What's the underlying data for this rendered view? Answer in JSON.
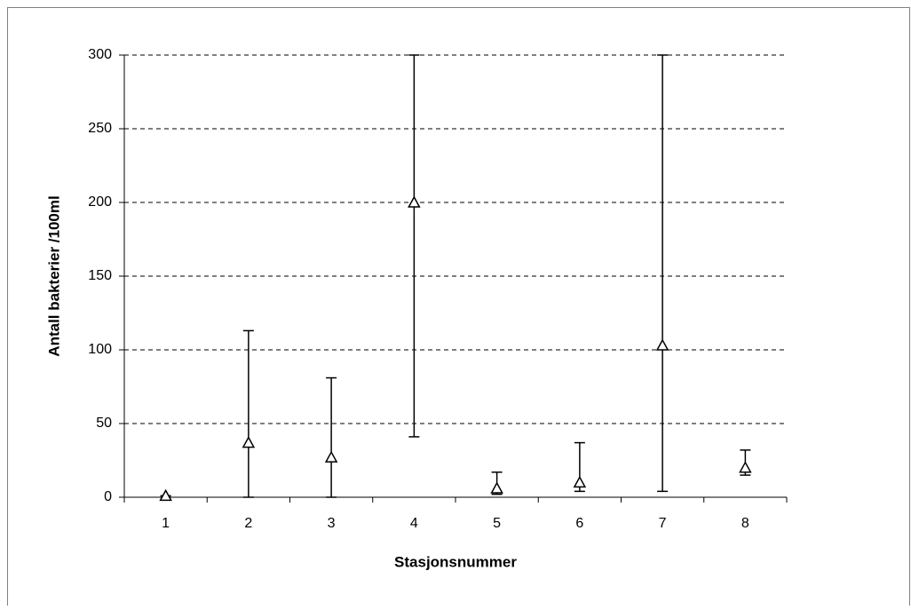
{
  "chart_data": {
    "type": "range",
    "x_label": "Stasjonsnummer",
    "y_label": "Antall bakterier /100ml",
    "categories": [
      "1",
      "2",
      "3",
      "4",
      "5",
      "6",
      "7",
      "8"
    ],
    "mean": [
      1,
      37,
      27,
      200,
      6,
      10,
      103,
      20
    ],
    "min": [
      0,
      0,
      0,
      41,
      2,
      4,
      4,
      15
    ],
    "max": [
      1,
      113,
      81,
      300,
      17,
      37,
      300,
      32
    ],
    "ylim": [
      0,
      300
    ],
    "yticks": [
      0,
      50,
      100,
      150,
      200,
      250,
      300
    ],
    "grid": true,
    "color": "#000000"
  }
}
